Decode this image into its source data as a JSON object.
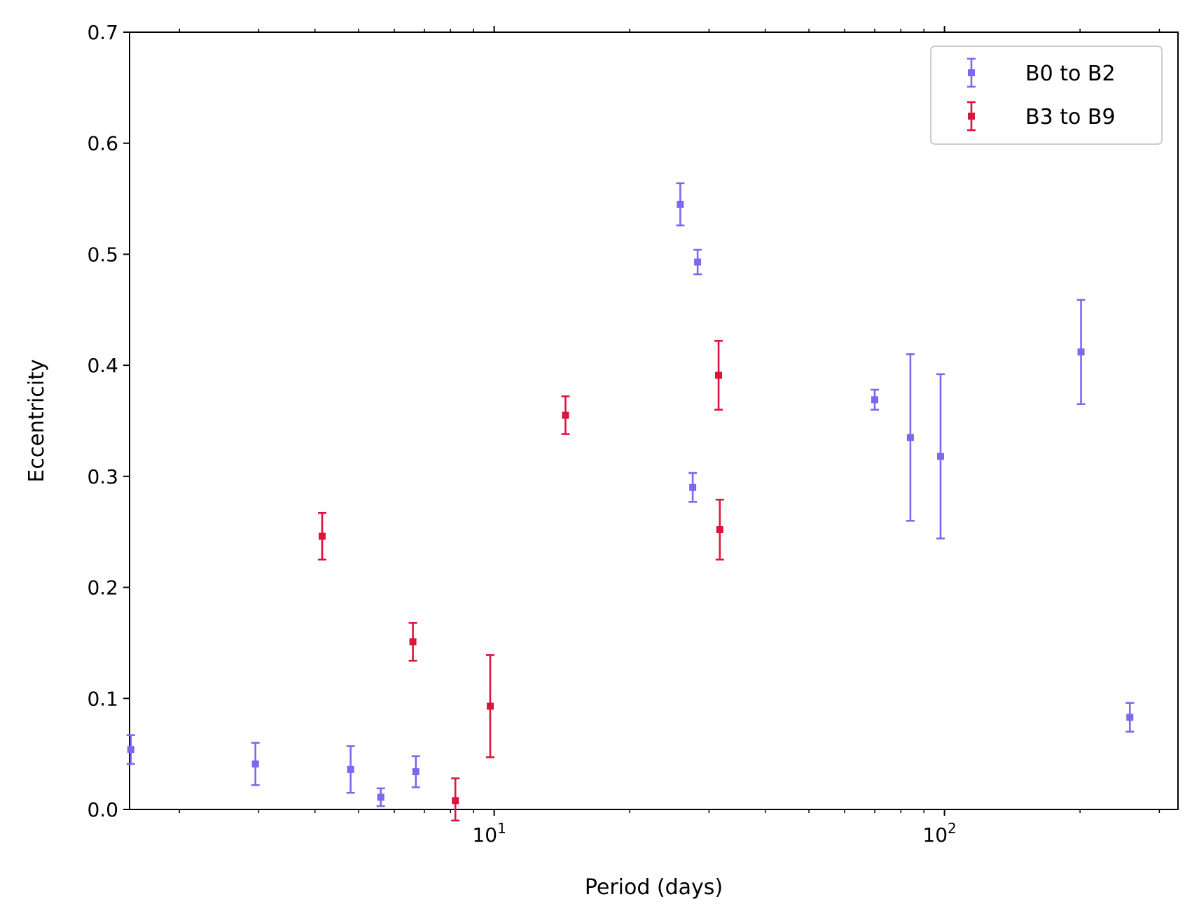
{
  "chart_data": {
    "type": "scatter",
    "xlabel": "Period (days)",
    "ylabel": "Eccentricity",
    "x_scale": "log",
    "xlim": [
      1.55,
      330
    ],
    "ylim": [
      0.0,
      0.7
    ],
    "y_ticks": [
      "0.0",
      "0.1",
      "0.2",
      "0.3",
      "0.4",
      "0.5",
      "0.6",
      "0.7"
    ],
    "x_major_ticks": [
      {
        "value": 10,
        "base": "10",
        "exp": "1"
      },
      {
        "value": 100,
        "base": "10",
        "exp": "2"
      }
    ],
    "legend_position": "top-right",
    "grid": false,
    "series": [
      {
        "name": "B0 to B2",
        "color": "#7b68ee",
        "points": [
          {
            "x": 1.56,
            "y": 0.054,
            "err": 0.013
          },
          {
            "x": 2.95,
            "y": 0.041,
            "err": 0.019
          },
          {
            "x": 4.8,
            "y": 0.036,
            "err": 0.021
          },
          {
            "x": 5.6,
            "y": 0.011,
            "err": 0.008
          },
          {
            "x": 6.7,
            "y": 0.034,
            "err": 0.014
          },
          {
            "x": 25.9,
            "y": 0.545,
            "err": 0.019
          },
          {
            "x": 27.6,
            "y": 0.29,
            "err": 0.013
          },
          {
            "x": 28.3,
            "y": 0.493,
            "err": 0.011
          },
          {
            "x": 70.0,
            "y": 0.369,
            "err": 0.009
          },
          {
            "x": 84.0,
            "y": 0.335,
            "err": 0.075
          },
          {
            "x": 98.0,
            "y": 0.318,
            "err": 0.074
          },
          {
            "x": 201.0,
            "y": 0.412,
            "err": 0.047
          },
          {
            "x": 258.0,
            "y": 0.083,
            "err": 0.013
          }
        ]
      },
      {
        "name": "B3 to B9",
        "color": "#dc143c",
        "points": [
          {
            "x": 4.15,
            "y": 0.246,
            "err": 0.021
          },
          {
            "x": 6.6,
            "y": 0.151,
            "err": 0.017
          },
          {
            "x": 8.2,
            "y": 0.008,
            "err": 0.02
          },
          {
            "x": 9.8,
            "y": 0.093,
            "err": 0.046
          },
          {
            "x": 14.4,
            "y": 0.355,
            "err": 0.017
          },
          {
            "x": 31.5,
            "y": 0.391,
            "err": 0.031
          },
          {
            "x": 31.7,
            "y": 0.252,
            "err": 0.027
          }
        ]
      }
    ]
  }
}
